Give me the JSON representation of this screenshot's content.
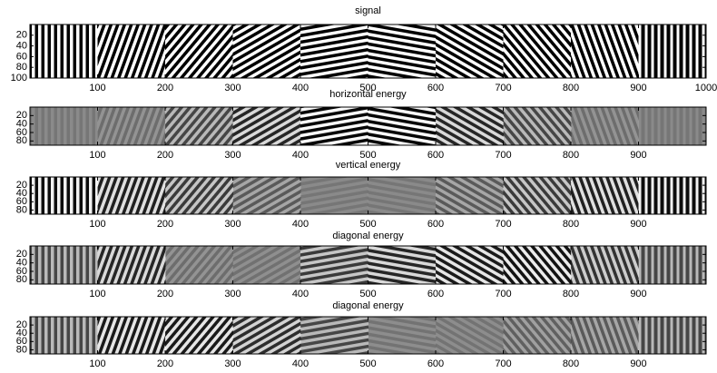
{
  "chart_data": [
    {
      "type": "image",
      "title": "signal",
      "xlim": [
        0,
        1000
      ],
      "xticks": [
        100,
        200,
        300,
        400,
        500,
        600,
        700,
        800,
        900,
        1000
      ],
      "ylim": [
        0,
        100
      ],
      "yticks": [
        20,
        40,
        60,
        80,
        100
      ]
    },
    {
      "type": "image",
      "title": "horizontal energy",
      "xlim": [
        0,
        1000
      ],
      "xticks": [
        100,
        200,
        300,
        400,
        500,
        600,
        700,
        800,
        900
      ],
      "ylim": [
        0,
        90
      ],
      "yticks": [
        20,
        40,
        60,
        80
      ]
    },
    {
      "type": "image",
      "title": "vertical energy",
      "xlim": [
        0,
        1000
      ],
      "xticks": [
        100,
        200,
        300,
        400,
        500,
        600,
        700,
        800,
        900
      ],
      "ylim": [
        0,
        90
      ],
      "yticks": [
        20,
        40,
        60,
        80
      ]
    },
    {
      "type": "image",
      "title": "diagonal energy",
      "xlim": [
        0,
        1000
      ],
      "xticks": [
        100,
        200,
        300,
        400,
        500,
        600,
        700,
        800,
        900
      ],
      "ylim": [
        0,
        90
      ],
      "yticks": [
        20,
        40,
        60,
        80
      ]
    },
    {
      "type": "image",
      "title": "diagonal energy",
      "xlim": [
        0,
        1000
      ],
      "xticks": [
        100,
        200,
        300,
        400,
        500,
        600,
        700,
        800,
        900
      ],
      "ylim": [
        0,
        90
      ],
      "yticks": [
        20,
        40,
        60,
        80
      ]
    }
  ]
}
